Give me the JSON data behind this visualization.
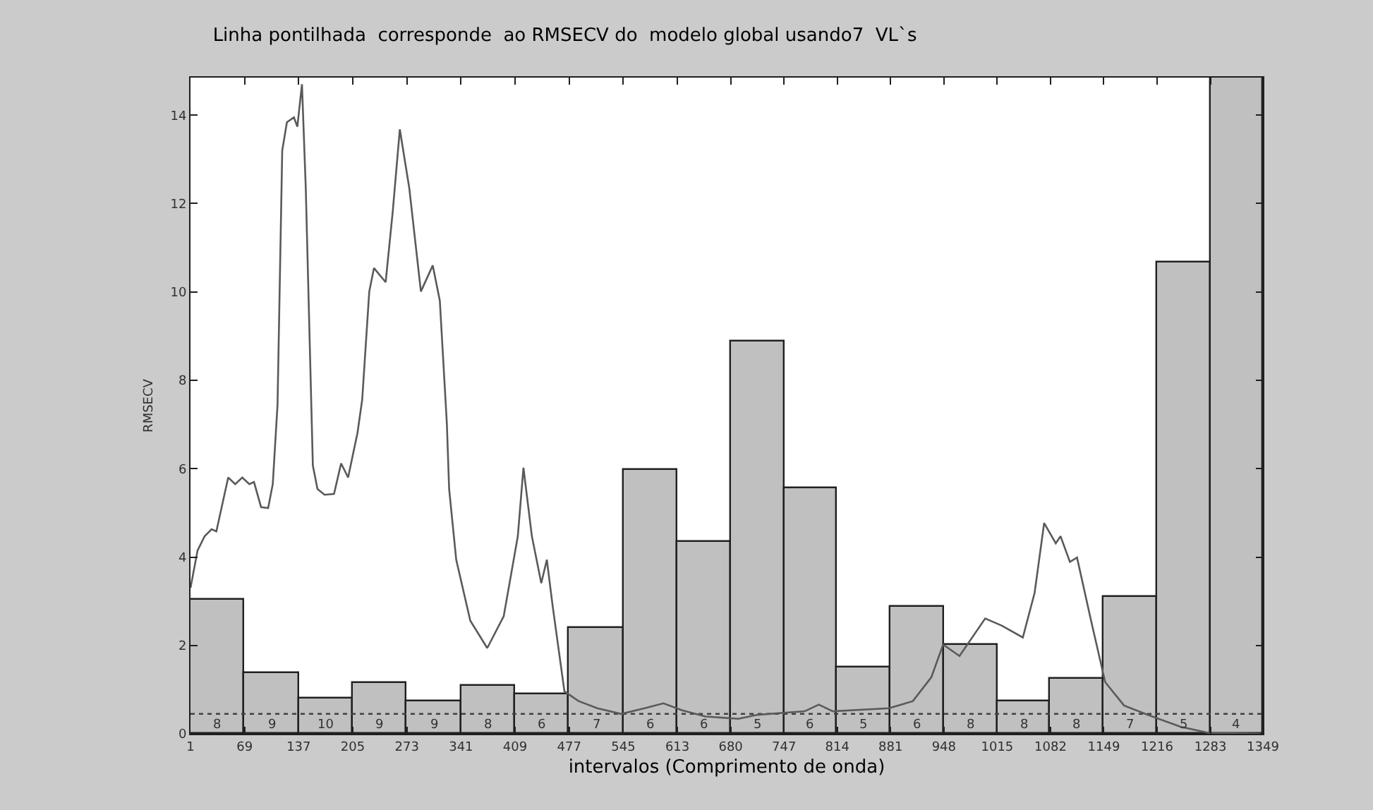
{
  "chart_data": {
    "type": "histogram",
    "title": "Linha pontilhada  corresponde  ao RMSECV do  modelo global usando7  VL`s",
    "xlabel": "intervalos (Comprimento de onda)",
    "ylabel": "RMSECV",
    "bins": [
      1,
      69,
      137,
      205,
      273,
      341,
      409,
      477,
      545,
      613,
      680,
      747,
      814,
      881,
      948,
      1015,
      1082,
      1149,
      1216,
      1283,
      1349
    ],
    "values": [
      3.03,
      1.38,
      0.8,
      1.14,
      0.74,
      1.09,
      0.89,
      2.41,
      5.96,
      4.35,
      8.88,
      5.57,
      1.49,
      2.88,
      2.0,
      0.72,
      1.24,
      3.09,
      10.68,
      14.85
    ],
    "color": "#c0c0c0",
    "series": [
      {
        "type": "line",
        "color": "#5a5a5a",
        "x": [
          1,
          9.9,
          18.7,
          27.6,
          33.5,
          48.4,
          57.2,
          66.1,
          75,
          80.8,
          89.7,
          98.6,
          104.4,
          110.4,
          116.3,
          122.2,
          131,
          135.3,
          141.1,
          145.9,
          154.8,
          160.6,
          169.5,
          181.4,
          190.3,
          199.1,
          210.9,
          216.8,
          225.7,
          231.6,
          246.3,
          255.2,
          264.1,
          276,
          290.6,
          305.5,
          314.4,
          323.2,
          326.1,
          335,
          352.7,
          374,
          394.7,
          412.4,
          419.5,
          430.1,
          441.9,
          448.9,
          456.3,
          471,
          488.8,
          512.3,
          542.3,
          571.9,
          595.5,
          619.1,
          648.4,
          689.8,
          713.5,
          773,
          790.7,
          808.4,
          879.4,
          909,
          932.2,
          947,
          967.6,
          999.9,
          1020.6,
          1047.2,
          1062,
          1074,
          1088.6,
          1094.6,
          1106.4,
          1115.3,
          1133,
          1150.7,
          1174.4,
          1204,
          1245.4,
          1280.9,
          1346
        ],
        "values": [
          3.3,
          4.15,
          4.47,
          4.63,
          4.58,
          5.8,
          5.65,
          5.8,
          5.65,
          5.7,
          5.13,
          5.11,
          5.65,
          7.45,
          13.2,
          13.84,
          13.95,
          13.74,
          14.7,
          12.35,
          6.07,
          5.54,
          5.41,
          5.43,
          6.12,
          5.8,
          6.81,
          7.56,
          10.01,
          10.54,
          10.22,
          11.82,
          13.68,
          12.35,
          10.01,
          10.6,
          9.8,
          7.03,
          5.54,
          3.94,
          2.56,
          1.94,
          2.66,
          4.47,
          6.02,
          4.47,
          3.41,
          3.94,
          2.88,
          0.96,
          0.74,
          0.58,
          0.45,
          0.58,
          0.69,
          0.53,
          0.39,
          0.34,
          0.43,
          0.51,
          0.66,
          0.51,
          0.58,
          0.74,
          1.28,
          2.02,
          1.76,
          2.61,
          2.45,
          2.18,
          3.19,
          4.77,
          4.31,
          4.47,
          3.89,
          3.99,
          2.56,
          1.17,
          0.64,
          0.43,
          0.16,
          0.02,
          0.0
        ]
      }
    ],
    "xlim": [
      1,
      1349
    ],
    "xticks": [
      1,
      69,
      137,
      205,
      273,
      341,
      409,
      477,
      545,
      613,
      680,
      747,
      814,
      881,
      948,
      1015,
      1082,
      1149,
      1216,
      1283,
      1349
    ],
    "ylim": [
      0,
      14.85
    ],
    "yticks": [
      0,
      2,
      4,
      6,
      8,
      10,
      12,
      14
    ],
    "ref_lines": [
      {
        "axis": "y",
        "value": 0.45,
        "color": "#404040",
        "line_style": "dotted"
      }
    ],
    "annotations": [
      {
        "text": "8",
        "x": 35,
        "y": 0.45
      },
      {
        "text": "9",
        "x": 103,
        "y": 0.45
      },
      {
        "text": "10",
        "x": 171,
        "y": 0.45
      },
      {
        "text": "9",
        "x": 239,
        "y": 0.45
      },
      {
        "text": "9",
        "x": 307,
        "y": 0.45
      },
      {
        "text": "8",
        "x": 375,
        "y": 0.45
      },
      {
        "text": "6",
        "x": 443,
        "y": 0.45
      },
      {
        "text": "7",
        "x": 511,
        "y": 0.45
      },
      {
        "text": "6",
        "x": 579,
        "y": 0.45
      },
      {
        "text": "6",
        "x": 646.5,
        "y": 0.45
      },
      {
        "text": "5",
        "x": 713.5,
        "y": 0.45
      },
      {
        "text": "6",
        "x": 780.5,
        "y": 0.45
      },
      {
        "text": "5",
        "x": 847.5,
        "y": 0.45
      },
      {
        "text": "6",
        "x": 914.5,
        "y": 0.45
      },
      {
        "text": "8",
        "x": 981.5,
        "y": 0.45
      },
      {
        "text": "8",
        "x": 1048.5,
        "y": 0.45
      },
      {
        "text": "8",
        "x": 1115.5,
        "y": 0.45
      },
      {
        "text": "7",
        "x": 1182.5,
        "y": 0.45
      },
      {
        "text": "5",
        "x": 1249.5,
        "y": 0.45
      },
      {
        "text": "4",
        "x": 1316,
        "y": 0.45
      }
    ]
  }
}
